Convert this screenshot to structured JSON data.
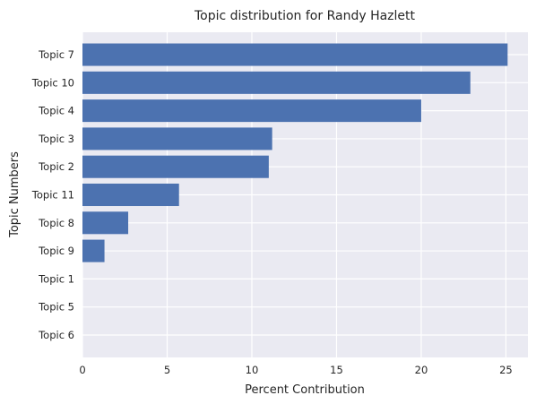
{
  "chart_data": {
    "type": "bar",
    "orientation": "horizontal",
    "title": "Topic distribution for Randy Hazlett",
    "xlabel": "Percent Contribution",
    "ylabel": "Topic Numbers",
    "categories": [
      "Topic 7",
      "Topic 10",
      "Topic 4",
      "Topic 3",
      "Topic 2",
      "Topic 11",
      "Topic 8",
      "Topic 9",
      "Topic 1",
      "Topic 5",
      "Topic 6"
    ],
    "values": [
      25.1,
      22.9,
      20.0,
      11.2,
      11.0,
      5.7,
      2.7,
      1.3,
      0,
      0,
      0
    ],
    "xlim": [
      0,
      26.3
    ],
    "xticks": [
      0,
      5,
      10,
      15,
      20,
      25
    ],
    "grid": true,
    "colors": {
      "bar": "#4c72b0",
      "plot_background": "#eaeaf2",
      "grid": "#ffffff"
    }
  }
}
